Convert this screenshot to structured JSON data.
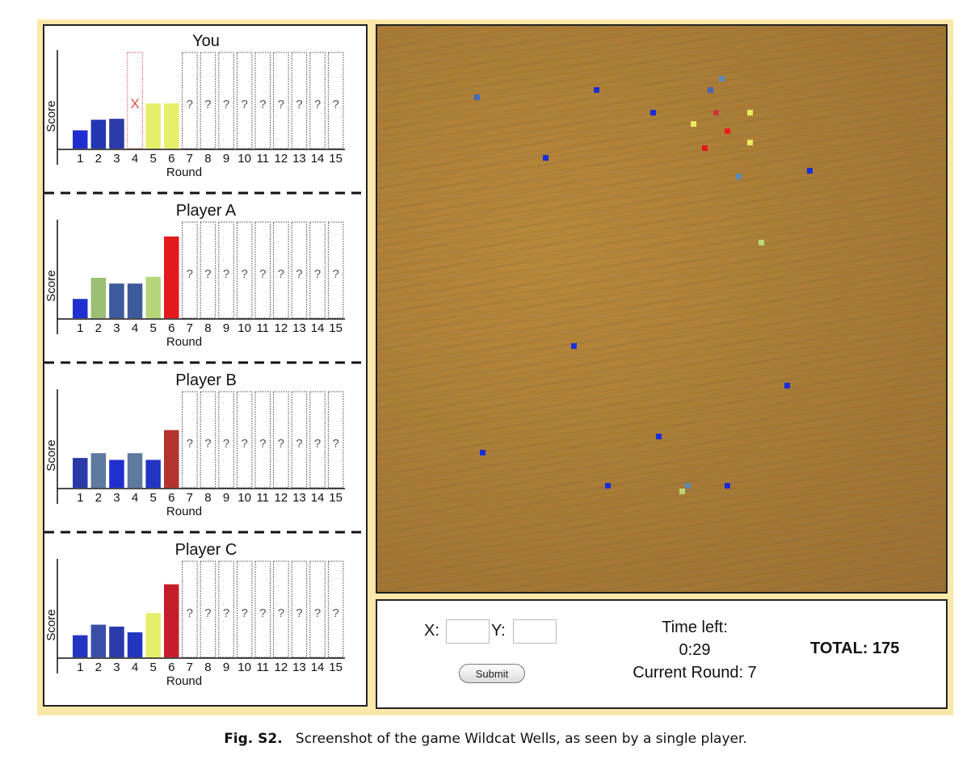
{
  "panels": [
    {
      "title": "You",
      "ylabel": "Score",
      "xlabel": "Round",
      "bars": [
        {
          "round": "1",
          "value": 0.19,
          "color": "#1f2fcf"
        },
        {
          "round": "2",
          "value": 0.3,
          "color": "#2235b2"
        },
        {
          "round": "3",
          "value": 0.31,
          "color": "#2a3aa8"
        },
        {
          "round": "4",
          "value": null,
          "marker": "X",
          "missed": true
        },
        {
          "round": "5",
          "value": 0.47,
          "color": "#e6ef6a"
        },
        {
          "round": "6",
          "value": 0.47,
          "color": "#e6ef6a"
        },
        {
          "round": "7",
          "value": null,
          "marker": "?"
        },
        {
          "round": "8",
          "value": null,
          "marker": "?"
        },
        {
          "round": "9",
          "value": null,
          "marker": "?"
        },
        {
          "round": "10",
          "value": null,
          "marker": "?"
        },
        {
          "round": "11",
          "value": null,
          "marker": "?"
        },
        {
          "round": "12",
          "value": null,
          "marker": "?"
        },
        {
          "round": "13",
          "value": null,
          "marker": "?"
        },
        {
          "round": "14",
          "value": null,
          "marker": "?"
        },
        {
          "round": "15",
          "value": null,
          "marker": "?"
        }
      ]
    },
    {
      "title": "Player A",
      "ylabel": "Score",
      "xlabel": "Round",
      "bars": [
        {
          "round": "1",
          "value": 0.2,
          "color": "#1f2fcf"
        },
        {
          "round": "2",
          "value": 0.42,
          "color": "#9bbf74"
        },
        {
          "round": "3",
          "value": 0.36,
          "color": "#3d5a9c"
        },
        {
          "round": "4",
          "value": 0.36,
          "color": "#3d5a9c"
        },
        {
          "round": "5",
          "value": 0.43,
          "color": "#b5d57a"
        },
        {
          "round": "6",
          "value": 0.85,
          "color": "#e31a1c"
        },
        {
          "round": "7",
          "value": null,
          "marker": "?"
        },
        {
          "round": "8",
          "value": null,
          "marker": "?"
        },
        {
          "round": "9",
          "value": null,
          "marker": "?"
        },
        {
          "round": "10",
          "value": null,
          "marker": "?"
        },
        {
          "round": "11",
          "value": null,
          "marker": "?"
        },
        {
          "round": "12",
          "value": null,
          "marker": "?"
        },
        {
          "round": "13",
          "value": null,
          "marker": "?"
        },
        {
          "round": "14",
          "value": null,
          "marker": "?"
        },
        {
          "round": "15",
          "value": null,
          "marker": "?"
        }
      ]
    },
    {
      "title": "Player B",
      "ylabel": "Score",
      "xlabel": "Round",
      "bars": [
        {
          "round": "1",
          "value": 0.31,
          "color": "#2a3aa8"
        },
        {
          "round": "2",
          "value": 0.36,
          "color": "#5f7aa0"
        },
        {
          "round": "3",
          "value": 0.29,
          "color": "#1f2fcf"
        },
        {
          "round": "4",
          "value": 0.36,
          "color": "#5f7aa0"
        },
        {
          "round": "5",
          "value": 0.29,
          "color": "#2235c0"
        },
        {
          "round": "6",
          "value": 0.6,
          "color": "#b3332e"
        },
        {
          "round": "7",
          "value": null,
          "marker": "?"
        },
        {
          "round": "8",
          "value": null,
          "marker": "?"
        },
        {
          "round": "9",
          "value": null,
          "marker": "?"
        },
        {
          "round": "10",
          "value": null,
          "marker": "?"
        },
        {
          "round": "11",
          "value": null,
          "marker": "?"
        },
        {
          "round": "12",
          "value": null,
          "marker": "?"
        },
        {
          "round": "13",
          "value": null,
          "marker": "?"
        },
        {
          "round": "14",
          "value": null,
          "marker": "?"
        },
        {
          "round": "15",
          "value": null,
          "marker": "?"
        }
      ]
    },
    {
      "title": "Player C",
      "ylabel": "Score",
      "xlabel": "Round",
      "bars": [
        {
          "round": "1",
          "value": 0.23,
          "color": "#2235c0"
        },
        {
          "round": "2",
          "value": 0.34,
          "color": "#3a4ea8"
        },
        {
          "round": "3",
          "value": 0.32,
          "color": "#2a3aa8"
        },
        {
          "round": "4",
          "value": 0.26,
          "color": "#2235c0"
        },
        {
          "round": "5",
          "value": 0.46,
          "color": "#e6ef6a"
        },
        {
          "round": "6",
          "value": 0.76,
          "color": "#c41e2a"
        },
        {
          "round": "7",
          "value": null,
          "marker": "?"
        },
        {
          "round": "8",
          "value": null,
          "marker": "?"
        },
        {
          "round": "9",
          "value": null,
          "marker": "?"
        },
        {
          "round": "10",
          "value": null,
          "marker": "?"
        },
        {
          "round": "11",
          "value": null,
          "marker": "?"
        },
        {
          "round": "12",
          "value": null,
          "marker": "?"
        },
        {
          "round": "13",
          "value": null,
          "marker": "?"
        },
        {
          "round": "14",
          "value": null,
          "marker": "?"
        },
        {
          "round": "15",
          "value": null,
          "marker": "?"
        }
      ]
    }
  ],
  "map": {
    "markers": [
      {
        "x": 0.175,
        "y": 0.125,
        "color": "#4466bb"
      },
      {
        "x": 0.385,
        "y": 0.112,
        "color": "#1a2ed6"
      },
      {
        "x": 0.585,
        "y": 0.112,
        "color": "#4466bb"
      },
      {
        "x": 0.605,
        "y": 0.093,
        "color": "#5a8ab5"
      },
      {
        "x": 0.485,
        "y": 0.153,
        "color": "#1a2ed6"
      },
      {
        "x": 0.595,
        "y": 0.153,
        "color": "#c83a3a"
      },
      {
        "x": 0.655,
        "y": 0.153,
        "color": "#e8ea5e"
      },
      {
        "x": 0.555,
        "y": 0.173,
        "color": "#e8ea5e"
      },
      {
        "x": 0.615,
        "y": 0.185,
        "color": "#ee1e1e"
      },
      {
        "x": 0.655,
        "y": 0.205,
        "color": "#e8ea5e"
      },
      {
        "x": 0.575,
        "y": 0.215,
        "color": "#e01a1a"
      },
      {
        "x": 0.295,
        "y": 0.233,
        "color": "#1a2ed6"
      },
      {
        "x": 0.635,
        "y": 0.265,
        "color": "#5a8ab5"
      },
      {
        "x": 0.76,
        "y": 0.255,
        "color": "#1a2ed6"
      },
      {
        "x": 0.675,
        "y": 0.383,
        "color": "#b8d878"
      },
      {
        "x": 0.345,
        "y": 0.565,
        "color": "#1a2ed6"
      },
      {
        "x": 0.72,
        "y": 0.635,
        "color": "#1a2ed6"
      },
      {
        "x": 0.495,
        "y": 0.725,
        "color": "#1a2ed6"
      },
      {
        "x": 0.185,
        "y": 0.753,
        "color": "#1a2ed6"
      },
      {
        "x": 0.405,
        "y": 0.812,
        "color": "#1a2ed6"
      },
      {
        "x": 0.545,
        "y": 0.812,
        "color": "#5a8ab5"
      },
      {
        "x": 0.535,
        "y": 0.822,
        "color": "#b8d878"
      },
      {
        "x": 0.615,
        "y": 0.812,
        "color": "#1a2ed6"
      }
    ]
  },
  "controls": {
    "x_label": "X:",
    "y_label": "Y:",
    "x_value": "",
    "y_value": "",
    "submit_label": "Submit",
    "time_left_label": "Time left:",
    "time_left": "0:29",
    "current_round": "Current Round: 7",
    "total": "TOTAL: 175"
  },
  "caption": {
    "fig": "Fig. S2.",
    "text": "Screenshot of the game Wildcat Wells, as seen by a single player."
  }
}
